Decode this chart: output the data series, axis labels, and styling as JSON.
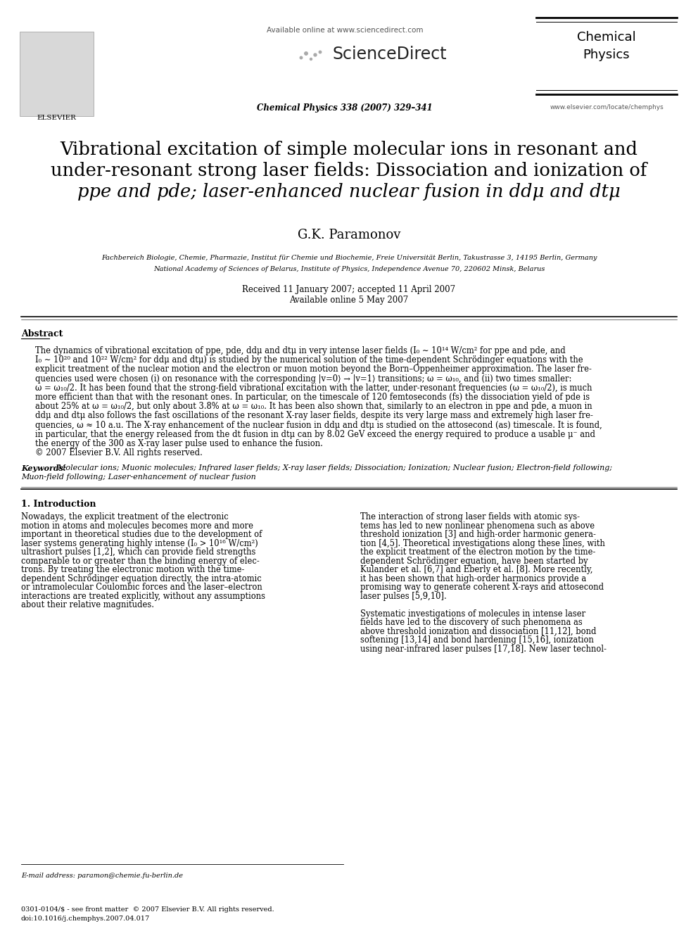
{
  "bg_color": "#ffffff",
  "title_line1": "Vibrational excitation of simple molecular ions in resonant and",
  "title_line2": "under-resonant strong laser fields: Dissociation and ionization of",
  "title_line3": "ppe and pde; laser-enhanced nuclear fusion in ddμ and dtμ",
  "author": "G.K. Paramonov",
  "affil1": "Fachbereich Biologie, Chemie, Pharmazie, Institut für Chemie und Biochemie, Freie Universität Berlin, Takustrasse 3, 14195 Berlin, Germany",
  "affil2": "National Academy of Sciences of Belarus, Institute of Physics, Independence Avenue 70, 220602 Minsk, Belarus",
  "received": "Received 11 January 2007; accepted 11 April 2007",
  "available": "Available online 5 May 2007",
  "journal_info": "Chemical Physics 338 (2007) 329–341",
  "available_online": "Available online at www.sciencedirect.com",
  "journal_name": "Chemical\nPhysics",
  "journal_url": "www.elsevier.com/locate/chemphys",
  "abstract_title": "Abstract",
  "abstract_lines": [
    "The dynamics of vibrational excitation of ppe, pde, ddμ and dtμ in very intense laser fields (I₀ ∼ 10¹⁴ W/cm² for ppe and pde, and",
    "I₀ ∼ 10²⁰ and 10²² W/cm² for ddμ and dtμ) is studied by the numerical solution of the time-dependent Schrödinger equations with the",
    "explicit treatment of the nuclear motion and the electron or muon motion beyond the Born–Oppenheimer approximation. The laser fre-",
    "quencies used were chosen (i) on resonance with the corresponding |v=0⟩ → |v=1⟩ transitions; ω = ω₁₀, and (ii) two times smaller:",
    "ω = ω₁₀/2. It has been found that the strong-field vibrational excitation with the latter, under-resonant frequencies (ω = ω₁₀/2), is much",
    "more efficient than that with the resonant ones. In particular, on the timescale of 120 femtoseconds (fs) the dissociation yield of pde is",
    "about 25% at ω = ω₁₀/2, but only about 3.8% at ω = ω₁₀. It has been also shown that, similarly to an electron in ppe and pde, a muon in",
    "ddμ and dtμ also follows the fast oscillations of the resonant X-ray laser fields, despite its very large mass and extremely high laser fre-",
    "quencies, ω ≈ 10 a.u. The X-ray enhancement of the nuclear fusion in ddμ and dtμ is studied on the attosecond (as) timescale. It is found,",
    "in particular, that the energy released from the dt fusion in dtμ can by 8.02 GeV exceed the energy required to produce a usable μ⁻ and",
    "the energy of the 300 as X-ray laser pulse used to enhance the fusion.",
    "© 2007 Elsevier B.V. All rights reserved."
  ],
  "keywords_label": "Keywords:",
  "keywords_text": "  Molecular ions; Muonic molecules; Infrared laser fields; X-ray laser fields; Dissociation; Ionization; Nuclear fusion; Electron-field following;",
  "keywords_line2": "Muon-field following; Laser-enhancement of nuclear fusion",
  "section1_title": "1. Introduction",
  "col1_lines": [
    "Nowadays, the explicit treatment of the electronic",
    "motion in atoms and molecules becomes more and more",
    "important in theoretical studies due to the development of",
    "laser systems generating highly intense (I₀ > 10¹⁶ W/cm²)",
    "ultrashort pulses [1,2], which can provide field strengths",
    "comparable to or greater than the binding energy of elec-",
    "trons. By treating the electronic motion with the time-",
    "dependent Schrödinger equation directly, the intra-atomic",
    "or intramolecular Coulombic forces and the laser–electron",
    "interactions are treated explicitly, without any assumptions",
    "about their relative magnitudes."
  ],
  "col2_lines": [
    "The interaction of strong laser fields with atomic sys-",
    "tems has led to new nonlinear phenomena such as above",
    "threshold ionization [3] and high-order harmonic genera-",
    "tion [4,5]. Theoretical investigations along these lines, with",
    "the explicit treatment of the electron motion by the time-",
    "dependent Schrödinger equation, have been started by",
    "Kulander et al. [6,7] and Eberly et al. [8]. More recently,",
    "it has been shown that high-order harmonics provide a",
    "promising way to generate coherent X-rays and attosecond",
    "laser pulses [5,9,10].",
    "",
    "Systematic investigations of molecules in intense laser",
    "fields have led to the discovery of such phenomena as",
    "above threshold ionization and dissociation [11,12], bond",
    "softening [13,14] and bond hardening [15,16], ionization",
    "using near-infrared laser pulses [17,18]. New laser technol-"
  ],
  "email": "E-mail address: paramon@chemie.fu-berlin.de",
  "footer1": "0301-0104/$ - see front matter  © 2007 Elsevier B.V. All rights reserved.",
  "footer2": "doi:10.1016/j.chemphys.2007.04.017"
}
